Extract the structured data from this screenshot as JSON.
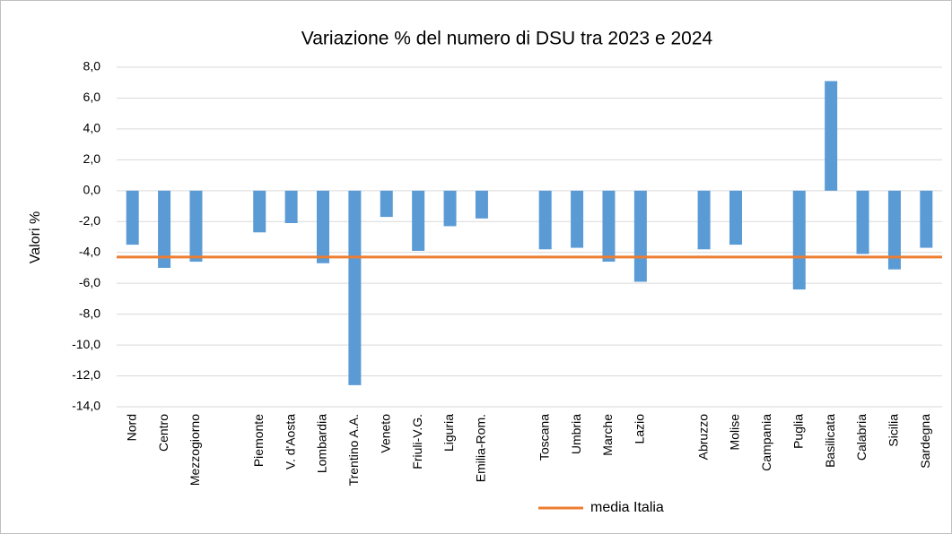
{
  "chart_data": {
    "type": "bar",
    "title": "Variazione % del numero di DSU tra 2023  e 2024",
    "y_label": "Valori %",
    "categories": [
      "Nord",
      "Centro",
      "Mezzogiorno",
      null,
      "Piemonte",
      "V. d'Aosta",
      "Lombardia",
      "Trentino A.A.",
      "Veneto",
      "Friuli-V.G.",
      "Liguria",
      "Emilia-Rom.",
      null,
      "Toscana",
      "Umbria",
      "Marche",
      "Lazio",
      null,
      "Abruzzo",
      "Molise",
      "Campania",
      "Puglia",
      "Basilicata",
      "Calabria",
      "Sicilia",
      "Sardegna"
    ],
    "values": [
      -3.5,
      -5.0,
      -4.6,
      null,
      -2.7,
      -2.1,
      -4.7,
      -12.6,
      -1.7,
      -3.9,
      -2.3,
      -1.8,
      null,
      -3.8,
      -3.7,
      -4.6,
      -5.9,
      null,
      -3.8,
      -3.5,
      null,
      -6.4,
      7.1,
      -4.1,
      -5.1,
      -3.7
    ],
    "color": "#5b9bd5",
    "reference_line": {
      "name": "media Italia",
      "value": -4.3,
      "color": "#ed7d31"
    },
    "ylim": [
      -14,
      8
    ],
    "yticks": [
      {
        "value": -14,
        "label": "-14,0"
      },
      {
        "value": -12,
        "label": "-12,0"
      },
      {
        "value": -10,
        "label": "-10,0"
      },
      {
        "value": -8,
        "label": "-8,0"
      },
      {
        "value": -6,
        "label": "-6,0"
      },
      {
        "value": -4,
        "label": "-4,0"
      },
      {
        "value": -2,
        "label": "-2,0"
      },
      {
        "value": 0,
        "label": "0,0"
      },
      {
        "value": 2,
        "label": "2,0"
      },
      {
        "value": 4,
        "label": "4,0"
      },
      {
        "value": 6,
        "label": "6,0"
      },
      {
        "value": 8,
        "label": "8,0"
      }
    ],
    "grid": true,
    "legend": "bottom"
  }
}
